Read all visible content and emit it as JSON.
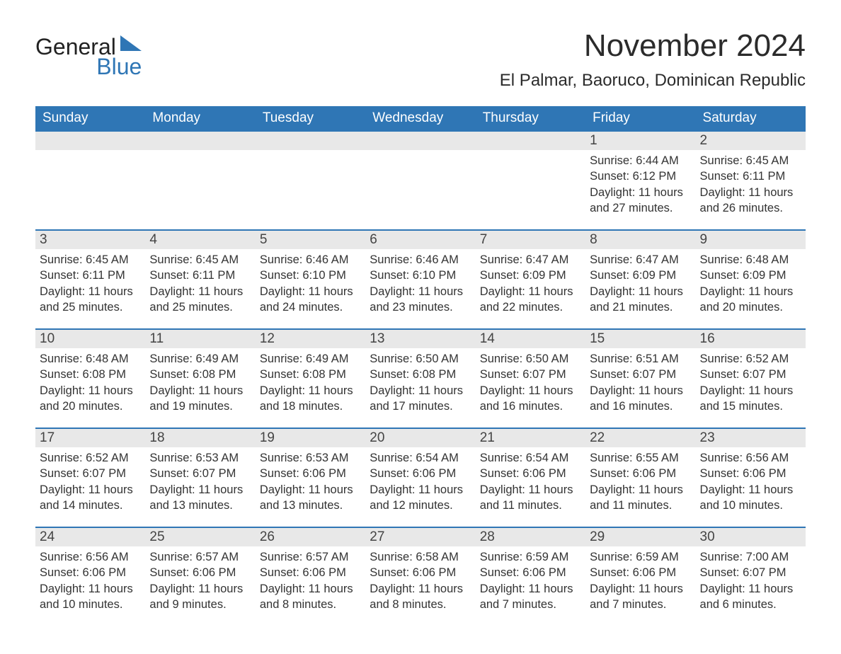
{
  "colors": {
    "header_bg": "#2f76b5",
    "header_text": "#ffffff",
    "daynum_bg": "#e8e8e8",
    "row_border": "#2f76b5",
    "text": "#333333",
    "logo_blue": "#2f76b5",
    "logo_dark": "#222222"
  },
  "logo": {
    "word1": "General",
    "word2": "Blue"
  },
  "title": "November 2024",
  "subtitle": "El Palmar, Baoruco, Dominican Republic",
  "day_headers": [
    "Sunday",
    "Monday",
    "Tuesday",
    "Wednesday",
    "Thursday",
    "Friday",
    "Saturday"
  ],
  "weeks": [
    [
      null,
      null,
      null,
      null,
      null,
      {
        "num": "1",
        "sunrise": "Sunrise: 6:44 AM",
        "sunset": "Sunset: 6:12 PM",
        "daylight": "Daylight: 11 hours and 27 minutes."
      },
      {
        "num": "2",
        "sunrise": "Sunrise: 6:45 AM",
        "sunset": "Sunset: 6:11 PM",
        "daylight": "Daylight: 11 hours and 26 minutes."
      }
    ],
    [
      {
        "num": "3",
        "sunrise": "Sunrise: 6:45 AM",
        "sunset": "Sunset: 6:11 PM",
        "daylight": "Daylight: 11 hours and 25 minutes."
      },
      {
        "num": "4",
        "sunrise": "Sunrise: 6:45 AM",
        "sunset": "Sunset: 6:11 PM",
        "daylight": "Daylight: 11 hours and 25 minutes."
      },
      {
        "num": "5",
        "sunrise": "Sunrise: 6:46 AM",
        "sunset": "Sunset: 6:10 PM",
        "daylight": "Daylight: 11 hours and 24 minutes."
      },
      {
        "num": "6",
        "sunrise": "Sunrise: 6:46 AM",
        "sunset": "Sunset: 6:10 PM",
        "daylight": "Daylight: 11 hours and 23 minutes."
      },
      {
        "num": "7",
        "sunrise": "Sunrise: 6:47 AM",
        "sunset": "Sunset: 6:09 PM",
        "daylight": "Daylight: 11 hours and 22 minutes."
      },
      {
        "num": "8",
        "sunrise": "Sunrise: 6:47 AM",
        "sunset": "Sunset: 6:09 PM",
        "daylight": "Daylight: 11 hours and 21 minutes."
      },
      {
        "num": "9",
        "sunrise": "Sunrise: 6:48 AM",
        "sunset": "Sunset: 6:09 PM",
        "daylight": "Daylight: 11 hours and 20 minutes."
      }
    ],
    [
      {
        "num": "10",
        "sunrise": "Sunrise: 6:48 AM",
        "sunset": "Sunset: 6:08 PM",
        "daylight": "Daylight: 11 hours and 20 minutes."
      },
      {
        "num": "11",
        "sunrise": "Sunrise: 6:49 AM",
        "sunset": "Sunset: 6:08 PM",
        "daylight": "Daylight: 11 hours and 19 minutes."
      },
      {
        "num": "12",
        "sunrise": "Sunrise: 6:49 AM",
        "sunset": "Sunset: 6:08 PM",
        "daylight": "Daylight: 11 hours and 18 minutes."
      },
      {
        "num": "13",
        "sunrise": "Sunrise: 6:50 AM",
        "sunset": "Sunset: 6:08 PM",
        "daylight": "Daylight: 11 hours and 17 minutes."
      },
      {
        "num": "14",
        "sunrise": "Sunrise: 6:50 AM",
        "sunset": "Sunset: 6:07 PM",
        "daylight": "Daylight: 11 hours and 16 minutes."
      },
      {
        "num": "15",
        "sunrise": "Sunrise: 6:51 AM",
        "sunset": "Sunset: 6:07 PM",
        "daylight": "Daylight: 11 hours and 16 minutes."
      },
      {
        "num": "16",
        "sunrise": "Sunrise: 6:52 AM",
        "sunset": "Sunset: 6:07 PM",
        "daylight": "Daylight: 11 hours and 15 minutes."
      }
    ],
    [
      {
        "num": "17",
        "sunrise": "Sunrise: 6:52 AM",
        "sunset": "Sunset: 6:07 PM",
        "daylight": "Daylight: 11 hours and 14 minutes."
      },
      {
        "num": "18",
        "sunrise": "Sunrise: 6:53 AM",
        "sunset": "Sunset: 6:07 PM",
        "daylight": "Daylight: 11 hours and 13 minutes."
      },
      {
        "num": "19",
        "sunrise": "Sunrise: 6:53 AM",
        "sunset": "Sunset: 6:06 PM",
        "daylight": "Daylight: 11 hours and 13 minutes."
      },
      {
        "num": "20",
        "sunrise": "Sunrise: 6:54 AM",
        "sunset": "Sunset: 6:06 PM",
        "daylight": "Daylight: 11 hours and 12 minutes."
      },
      {
        "num": "21",
        "sunrise": "Sunrise: 6:54 AM",
        "sunset": "Sunset: 6:06 PM",
        "daylight": "Daylight: 11 hours and 11 minutes."
      },
      {
        "num": "22",
        "sunrise": "Sunrise: 6:55 AM",
        "sunset": "Sunset: 6:06 PM",
        "daylight": "Daylight: 11 hours and 11 minutes."
      },
      {
        "num": "23",
        "sunrise": "Sunrise: 6:56 AM",
        "sunset": "Sunset: 6:06 PM",
        "daylight": "Daylight: 11 hours and 10 minutes."
      }
    ],
    [
      {
        "num": "24",
        "sunrise": "Sunrise: 6:56 AM",
        "sunset": "Sunset: 6:06 PM",
        "daylight": "Daylight: 11 hours and 10 minutes."
      },
      {
        "num": "25",
        "sunrise": "Sunrise: 6:57 AM",
        "sunset": "Sunset: 6:06 PM",
        "daylight": "Daylight: 11 hours and 9 minutes."
      },
      {
        "num": "26",
        "sunrise": "Sunrise: 6:57 AM",
        "sunset": "Sunset: 6:06 PM",
        "daylight": "Daylight: 11 hours and 8 minutes."
      },
      {
        "num": "27",
        "sunrise": "Sunrise: 6:58 AM",
        "sunset": "Sunset: 6:06 PM",
        "daylight": "Daylight: 11 hours and 8 minutes."
      },
      {
        "num": "28",
        "sunrise": "Sunrise: 6:59 AM",
        "sunset": "Sunset: 6:06 PM",
        "daylight": "Daylight: 11 hours and 7 minutes."
      },
      {
        "num": "29",
        "sunrise": "Sunrise: 6:59 AM",
        "sunset": "Sunset: 6:06 PM",
        "daylight": "Daylight: 11 hours and 7 minutes."
      },
      {
        "num": "30",
        "sunrise": "Sunrise: 7:00 AM",
        "sunset": "Sunset: 6:07 PM",
        "daylight": "Daylight: 11 hours and 6 minutes."
      }
    ]
  ]
}
